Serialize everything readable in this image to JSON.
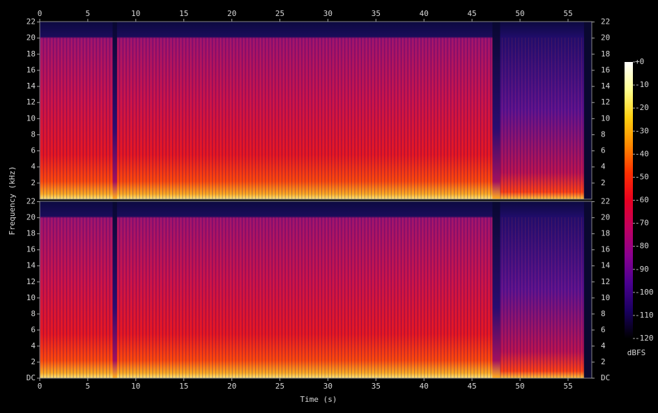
{
  "chart_data": {
    "type": "spectrogram",
    "x_label": "Time (s)",
    "y_label": "Frequency (kHz)",
    "xlim": [
      0,
      57.47
    ],
    "xticks": [
      0,
      5,
      10,
      15,
      20,
      25,
      30,
      35,
      40,
      45,
      50,
      55
    ],
    "panels": [
      {
        "ylim": [
          0,
          22.05
        ],
        "yticks": [
          2,
          4,
          6,
          8,
          10,
          12,
          14,
          16,
          18,
          20,
          22
        ]
      },
      {
        "ylim": [
          0,
          22.05
        ],
        "yticks": [
          {
            "value": 0,
            "label": "DC"
          },
          2,
          4,
          6,
          8,
          10,
          12,
          14,
          16,
          18,
          20,
          22
        ]
      }
    ],
    "colorbar": {
      "label": "dBFS",
      "lim": [
        -120,
        0
      ],
      "ticks": [
        {
          "value": 0,
          "label": "+0"
        },
        -10,
        -20,
        -30,
        -40,
        -50,
        -60,
        -70,
        -80,
        -90,
        -100,
        -110,
        -120
      ]
    }
  }
}
